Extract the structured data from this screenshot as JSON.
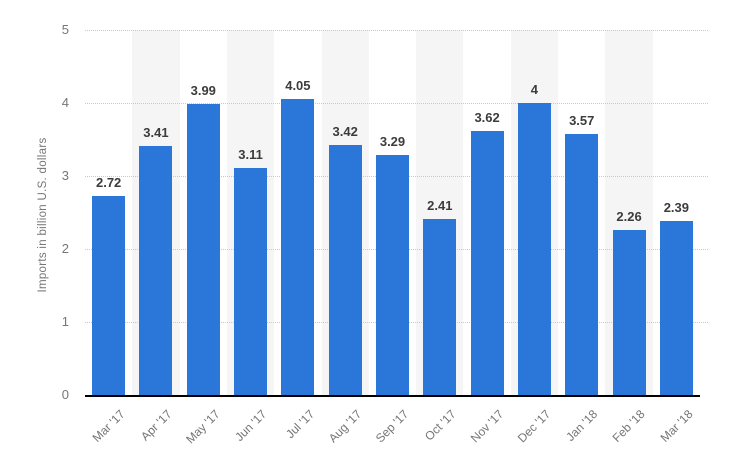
{
  "chart_data": {
    "type": "bar",
    "title": "",
    "xlabel": "",
    "ylabel": "Imports in billion U.S. dollars",
    "categories": [
      "Mar '17",
      "Apr '17",
      "May '17",
      "Jun '17",
      "Jul '17",
      "Aug '17",
      "Sep '17",
      "Oct '17",
      "Nov '17",
      "Dec '17",
      "Jan '18",
      "Feb '18",
      "Mar '18"
    ],
    "values": [
      2.72,
      3.41,
      3.99,
      3.11,
      4.05,
      3.42,
      3.29,
      2.41,
      3.62,
      4,
      3.57,
      2.26,
      2.39
    ],
    "value_labels": [
      "2.72",
      "3.41",
      "3.99",
      "3.11",
      "4.05",
      "3.42",
      "3.29",
      "2.41",
      "3.62",
      "4",
      "3.57",
      "2.26",
      "2.39"
    ],
    "ylim": [
      0,
      5
    ],
    "yticks": [
      "0",
      "1",
      "2",
      "3",
      "4",
      "5"
    ],
    "grid": "horizontal-dotted",
    "legend": "none",
    "colors": {
      "bar": "#2b76d9",
      "column_stripe": "#f5f5f5",
      "gridline": "#c9c9c9",
      "axis_line": "#000000",
      "axis_text": "#767676",
      "value_label": "#3c3c3c",
      "background": "#ffffff"
    }
  }
}
